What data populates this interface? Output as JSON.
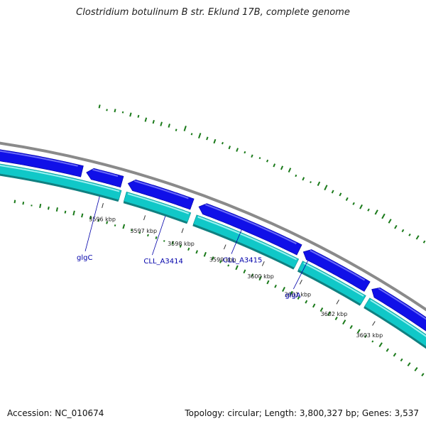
{
  "title": "Clostridium botulinum B str. Eklund 17B, complete genome",
  "footer": {
    "accession": "Accession: NC_010674",
    "topology": "Topology: circular; Length: 3,800,327 bp; Genes: 3,537"
  },
  "colors": {
    "backbone": "#8a8a8a",
    "forward_genes": "#1010e8",
    "forward_highlight": "#6a6af8",
    "reverse_genes": "#10c8c8",
    "reverse_highlight": "#9af0f0",
    "reverse_shadow": "#108080",
    "gc_ticks": "#1a7a1a",
    "labels": "#0000aa"
  },
  "kbp_ticks": [
    "3596 kbp",
    "3597 kbp",
    "3598 kbp",
    "3599 kbp",
    "3600 kbp",
    "3601 kbp",
    "3602 kbp",
    "3603 kbp"
  ],
  "gene_labels": [
    "glgC",
    "CLL_A3414",
    "CLL_A3415",
    "glgA"
  ]
}
